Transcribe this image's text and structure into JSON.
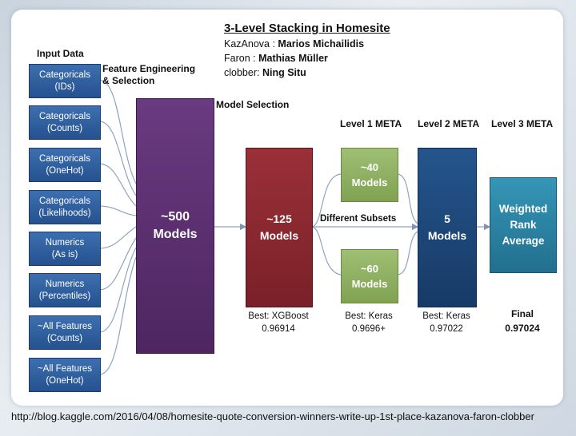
{
  "title": "3-Level Stacking in Homesite",
  "authors": [
    {
      "handle": "KazAnova",
      "sep": " : ",
      "name": "Marios  Michailidis"
    },
    {
      "handle": "Faron",
      "sep": " : ",
      "name": "Mathias  Müller"
    },
    {
      "handle": "clobber",
      "sep": ": ",
      "name": "Ning Situ"
    }
  ],
  "labels": {
    "input_data": "Input Data",
    "feature_engineering_1": "Feature Engineering",
    "feature_engineering_2": "& Selection",
    "model_selection": "Model Selection",
    "level1": "Level 1 META",
    "level2": "Level 2 META",
    "level3": "Level 3 META",
    "different_subsets": "Different Subsets"
  },
  "inputs": [
    {
      "line1": "Categoricals",
      "line2": "(IDs)"
    },
    {
      "line1": "Categoricals",
      "line2": "(Counts)"
    },
    {
      "line1": "Categoricals",
      "line2": "(OneHot)"
    },
    {
      "line1": "Categoricals",
      "line2": "(Likelihoods)"
    },
    {
      "line1": "Numerics",
      "line2": "(As is)"
    },
    {
      "line1": "Numerics",
      "line2": "(Percentiles)"
    },
    {
      "line1": "~All Features",
      "line2": "(Counts)"
    },
    {
      "line1": "~All Features",
      "line2": "(OneHot)"
    }
  ],
  "boxes": {
    "models500": {
      "line1": "~500",
      "line2": "Models"
    },
    "models125": {
      "line1": "~125",
      "line2": "Models"
    },
    "models40": {
      "line1": "~40",
      "line2": "Models"
    },
    "models60": {
      "line1": "~60",
      "line2": "Models"
    },
    "models5": {
      "line1": "5",
      "line2": "Models"
    },
    "weighted": {
      "line1": "Weighted",
      "line2": "Rank",
      "line3": "Average"
    }
  },
  "scores": {
    "level0": {
      "label": "Best: XGBoost",
      "value": "0.96914"
    },
    "level1": {
      "label": "Best: Keras",
      "value": "0.9696+"
    },
    "level2": {
      "label": "Best: Keras",
      "value": "0.97022"
    },
    "level3": {
      "label": "Final",
      "value": "0.97024"
    }
  },
  "url": "http://blog.kaggle.com/2016/04/08/homesite-quote-conversion-winners-write-up-1st-place-kazanova-faron-clobber",
  "colors": {
    "input_blue": "#2d5c9c",
    "purple": "#5a2f6e",
    "red": "#8a2a30",
    "green": "#8fae62",
    "navy": "#1d4778",
    "teal": "#2f86a6"
  }
}
